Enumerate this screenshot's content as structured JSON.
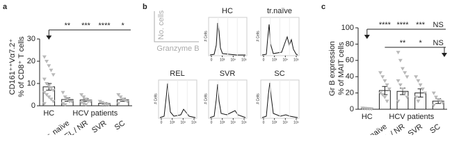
{
  "chart_data": [
    {
      "type": "bar",
      "label": "a",
      "ylabel": [
        "CD161⁺⁺Vα7.2⁺",
        "% of CD8⁺ T cells"
      ],
      "groups": [
        "HC",
        "HCV patients"
      ],
      "categories": [
        null,
        "tr. naïve",
        "REL / NR",
        "SVR",
        "SC"
      ],
      "values": [
        8.5,
        2.8,
        2.6,
        1.1,
        2.7
      ],
      "errors": [
        1.5,
        0.8,
        0.6,
        0.3,
        0.7
      ],
      "points": [
        [
          22,
          20,
          18,
          16,
          14,
          12,
          10,
          9,
          8,
          7,
          6,
          5,
          4,
          3,
          2,
          1
        ],
        [
          6,
          4,
          3,
          2,
          2,
          1,
          0.5
        ],
        [
          5,
          4,
          3,
          2,
          2,
          1.5,
          1,
          0.5
        ],
        [
          2,
          1.5,
          1,
          0.8,
          0.5
        ],
        [
          5,
          4,
          3,
          2.5,
          2,
          1
        ]
      ],
      "ylim": [
        0,
        35
      ],
      "yticks": [
        0,
        10,
        20,
        30
      ],
      "comparisons": [
        [
          "**",
          "***",
          "****",
          "*"
        ]
      ]
    },
    {
      "type": "histogram",
      "label": "b",
      "ylabel": "No. cells",
      "xlabel": "Granzyme B",
      "panels": [
        "HC",
        "tr.naïve",
        "REL",
        "SVR",
        "SC"
      ],
      "panel_ylabel": "# Cells",
      "panel_xticks": [
        0,
        {
          "value": 1000,
          "label": "10³"
        },
        {
          "value": 10000,
          "label": "10⁴"
        },
        {
          "value": 100000,
          "label": "10⁵"
        }
      ]
    },
    {
      "type": "bar",
      "label": "c",
      "ylabel": [
        "Gr B expression",
        "% of MAIT cells"
      ],
      "groups": [
        "HC",
        "HCV patients"
      ],
      "categories": [
        null,
        "tr.naïve",
        "REL / NR",
        "SVR",
        "SC"
      ],
      "values": [
        1,
        23,
        22,
        20,
        10
      ],
      "errors": [
        0.5,
        5,
        4,
        5,
        3
      ],
      "points": [
        [
          1.5,
          1.2,
          1,
          0.8,
          0.5
        ],
        [
          45,
          40,
          35,
          30,
          25,
          20,
          18,
          15,
          10
        ],
        [
          70,
          60,
          50,
          45,
          40,
          35,
          30,
          25,
          20,
          15,
          10
        ],
        [
          40,
          35,
          30,
          25,
          20,
          15,
          10
        ],
        [
          20,
          15,
          12,
          10,
          8,
          5
        ]
      ],
      "ylim": [
        0,
        100
      ],
      "yticks": [
        0,
        20,
        40,
        60,
        80,
        100
      ],
      "comparisons": [
        [
          "****",
          "****",
          "***",
          "NS"
        ],
        [
          "**",
          "*",
          "NS"
        ]
      ]
    }
  ]
}
